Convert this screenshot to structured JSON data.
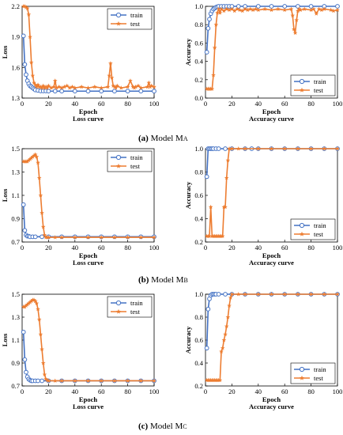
{
  "colors": {
    "train": "#4472c4",
    "test": "#ed7d31"
  },
  "captions": [
    {
      "label": "(a)",
      "text": "Model M",
      "sub": "A"
    },
    {
      "label": "(b)",
      "text": "Model M",
      "sub": "B"
    },
    {
      "label": "(c)",
      "text": "Model M",
      "sub": "C"
    }
  ],
  "chart_data": [
    {
      "id": "a-loss",
      "type": "line",
      "xlabel": "Epoch",
      "ylabel": "Loss",
      "title": "Loss curve",
      "xlim": [
        0,
        100
      ],
      "ylim": [
        1.3,
        2.2
      ],
      "xticks": [
        "0",
        "20",
        "40",
        "60",
        "80",
        "100"
      ],
      "yticks": [
        "1.3",
        "1.6",
        "1.9",
        "2.2"
      ],
      "ytickvals": [
        1.3,
        1.6,
        1.9,
        2.2
      ],
      "legend": "top-right",
      "series": [
        {
          "name": "train",
          "marker": "circle",
          "x": [
            1,
            2,
            3,
            4,
            5,
            6,
            7,
            8,
            9,
            10,
            12,
            14,
            16,
            18,
            20,
            25,
            30,
            40,
            50,
            60,
            70,
            80,
            90,
            100
          ],
          "y": [
            1.91,
            1.63,
            1.53,
            1.47,
            1.44,
            1.42,
            1.41,
            1.4,
            1.39,
            1.38,
            1.375,
            1.37,
            1.37,
            1.37,
            1.368,
            1.368,
            1.368,
            1.368,
            1.368,
            1.368,
            1.368,
            1.368,
            1.368,
            1.368
          ]
        },
        {
          "name": "test",
          "marker": "star",
          "x": [
            1,
            2,
            3,
            4,
            5,
            6,
            7,
            8,
            9,
            10,
            11,
            12,
            13,
            14,
            15,
            16,
            17,
            18,
            19,
            20,
            22,
            24,
            25,
            26,
            28,
            30,
            32,
            34,
            36,
            38,
            40,
            45,
            50,
            55,
            60,
            65,
            66,
            67,
            68,
            69,
            70,
            71,
            72,
            75,
            80,
            82,
            84,
            85,
            86,
            88,
            90,
            95,
            96,
            97,
            98,
            100
          ],
          "y": [
            2.2,
            2.2,
            2.19,
            2.18,
            2.12,
            1.9,
            1.65,
            1.52,
            1.45,
            1.43,
            1.41,
            1.43,
            1.41,
            1.41,
            1.4,
            1.42,
            1.4,
            1.41,
            1.4,
            1.42,
            1.4,
            1.41,
            1.47,
            1.4,
            1.41,
            1.4,
            1.41,
            1.42,
            1.4,
            1.41,
            1.4,
            1.41,
            1.4,
            1.41,
            1.4,
            1.41,
            1.52,
            1.64,
            1.5,
            1.42,
            1.41,
            1.4,
            1.42,
            1.4,
            1.41,
            1.47,
            1.41,
            1.4,
            1.41,
            1.42,
            1.4,
            1.41,
            1.45,
            1.41,
            1.42,
            1.41
          ]
        }
      ]
    },
    {
      "id": "a-acc",
      "type": "line",
      "xlabel": "Epoch",
      "ylabel": "Accuracy",
      "title": "Accuracy curve",
      "xlim": [
        0,
        100
      ],
      "ylim": [
        0,
        1
      ],
      "xticks": [
        "0",
        "20",
        "40",
        "60",
        "80",
        "100"
      ],
      "yticks": [
        "0.0",
        "0.2",
        "0.4",
        "0.6",
        "0.8",
        "1.0"
      ],
      "ytickvals": [
        0,
        0.2,
        0.4,
        0.6,
        0.8,
        1.0
      ],
      "legend": "bottom-right",
      "series": [
        {
          "name": "train",
          "marker": "circle",
          "x": [
            1,
            2,
            3,
            4,
            5,
            6,
            7,
            8,
            9,
            10,
            12,
            14,
            16,
            18,
            20,
            25,
            30,
            40,
            50,
            60,
            70,
            80,
            90,
            100
          ],
          "y": [
            0.5,
            0.76,
            0.86,
            0.92,
            0.95,
            0.97,
            0.98,
            0.99,
            0.995,
            1.0,
            1.0,
            1.0,
            1.0,
            1.0,
            1.0,
            1.0,
            1.0,
            1.0,
            1.0,
            1.0,
            1.0,
            1.0,
            1.0,
            1.0
          ]
        },
        {
          "name": "test",
          "marker": "star",
          "x": [
            1,
            2,
            3,
            4,
            5,
            6,
            7,
            8,
            9,
            10,
            11,
            12,
            14,
            16,
            18,
            20,
            22,
            24,
            26,
            28,
            30,
            32,
            34,
            36,
            38,
            40,
            45,
            50,
            55,
            60,
            65,
            66,
            67,
            68,
            69,
            70,
            71,
            72,
            75,
            80,
            82,
            84,
            86,
            88,
            90,
            95,
            97,
            100
          ],
          "y": [
            0.1,
            0.1,
            0.1,
            0.1,
            0.1,
            0.25,
            0.55,
            0.8,
            0.93,
            0.97,
            0.93,
            0.97,
            0.95,
            0.97,
            0.96,
            0.97,
            0.95,
            0.97,
            0.96,
            0.95,
            0.97,
            0.96,
            0.97,
            0.96,
            0.97,
            0.96,
            0.97,
            0.96,
            0.97,
            0.96,
            0.97,
            0.9,
            0.75,
            0.71,
            0.85,
            0.95,
            0.97,
            0.96,
            0.97,
            0.96,
            0.97,
            0.92,
            0.97,
            0.96,
            0.97,
            0.96,
            0.95,
            0.96
          ]
        }
      ]
    },
    {
      "id": "b-loss",
      "type": "line",
      "xlabel": "Epoch",
      "ylabel": "Loss",
      "title": "Loss curve",
      "xlim": [
        0,
        100
      ],
      "ylim": [
        0.7,
        1.5
      ],
      "xticks": [
        "0",
        "20",
        "40",
        "60",
        "80",
        "100"
      ],
      "yticks": [
        "0.7",
        "0.9",
        "1.1",
        "1.3",
        "1.5"
      ],
      "ytickvals": [
        0.7,
        0.9,
        1.1,
        1.3,
        1.5
      ],
      "legend": "top-right",
      "series": [
        {
          "name": "train",
          "marker": "circle",
          "x": [
            1,
            2,
            3,
            4,
            5,
            6,
            8,
            10,
            15,
            20,
            30,
            40,
            50,
            60,
            70,
            80,
            90,
            100
          ],
          "y": [
            1.02,
            0.8,
            0.76,
            0.75,
            0.75,
            0.745,
            0.745,
            0.745,
            0.745,
            0.745,
            0.745,
            0.745,
            0.745,
            0.745,
            0.745,
            0.745,
            0.745,
            0.745
          ]
        },
        {
          "name": "test",
          "marker": "star",
          "x": [
            1,
            2,
            3,
            4,
            5,
            6,
            7,
            8,
            9,
            10,
            11,
            12,
            13,
            14,
            15,
            16,
            17,
            18,
            19,
            20,
            25,
            30,
            40,
            50,
            60,
            70,
            80,
            90,
            100
          ],
          "y": [
            1.39,
            1.39,
            1.39,
            1.39,
            1.4,
            1.41,
            1.42,
            1.43,
            1.44,
            1.45,
            1.43,
            1.38,
            1.25,
            1.1,
            0.95,
            0.83,
            0.76,
            0.74,
            0.74,
            0.74,
            0.74,
            0.74,
            0.74,
            0.74,
            0.74,
            0.74,
            0.74,
            0.74,
            0.74
          ]
        }
      ]
    },
    {
      "id": "b-acc",
      "type": "line",
      "xlabel": "Epoch",
      "ylabel": "Accuracy",
      "title": "Accuracy curve",
      "xlim": [
        0,
        100
      ],
      "ylim": [
        0.2,
        1.0
      ],
      "xticks": [
        "0",
        "20",
        "40",
        "60",
        "80",
        "100"
      ],
      "yticks": [
        "0.2",
        "0.4",
        "0.6",
        "0.8",
        "1.0"
      ],
      "ytickvals": [
        0.2,
        0.4,
        0.6,
        0.8,
        1.0
      ],
      "legend": "bottom-right",
      "series": [
        {
          "name": "train",
          "marker": "circle",
          "x": [
            1,
            2,
            3,
            4,
            5,
            6,
            8,
            10,
            15,
            20,
            30,
            35,
            40,
            50,
            60,
            70,
            80,
            90,
            100
          ],
          "y": [
            0.76,
            1.0,
            1.0,
            1.0,
            1.0,
            1.0,
            1.0,
            1.0,
            1.0,
            1.0,
            1.0,
            1.0,
            1.0,
            1.0,
            1.0,
            1.0,
            1.0,
            1.0,
            1.0
          ]
        },
        {
          "name": "test",
          "marker": "star",
          "x": [
            1,
            2,
            3,
            4,
            5,
            6,
            7,
            8,
            9,
            10,
            11,
            12,
            13,
            14,
            15,
            16,
            17,
            18,
            20,
            25,
            30,
            40,
            50,
            60,
            70,
            80,
            90,
            100
          ],
          "y": [
            0.25,
            0.25,
            0.25,
            0.5,
            0.25,
            0.25,
            0.25,
            0.25,
            0.25,
            0.25,
            0.25,
            0.25,
            0.25,
            0.5,
            0.5,
            0.75,
            0.9,
            1.0,
            1.0,
            1.0,
            1.0,
            1.0,
            1.0,
            1.0,
            1.0,
            1.0,
            1.0,
            1.0
          ]
        }
      ]
    },
    {
      "id": "c-loss",
      "type": "line",
      "xlabel": "Epoch",
      "ylabel": "Loss",
      "title": "Loss curve",
      "xlim": [
        0,
        100
      ],
      "ylim": [
        0.7,
        1.5
      ],
      "xticks": [
        "0",
        "20",
        "40",
        "60",
        "80",
        "100"
      ],
      "yticks": [
        "0.7",
        "0.9",
        "1.1",
        "1.3",
        "1.5"
      ],
      "ytickvals": [
        0.7,
        0.9,
        1.1,
        1.3,
        1.5
      ],
      "legend": "top-right",
      "series": [
        {
          "name": "train",
          "marker": "circle",
          "x": [
            1,
            2,
            3,
            4,
            5,
            6,
            7,
            8,
            10,
            12,
            15,
            20,
            30,
            40,
            50,
            60,
            70,
            80,
            90,
            100
          ],
          "y": [
            1.17,
            0.93,
            0.82,
            0.78,
            0.76,
            0.75,
            0.745,
            0.745,
            0.745,
            0.745,
            0.745,
            0.745,
            0.745,
            0.745,
            0.745,
            0.745,
            0.745,
            0.745,
            0.745,
            0.745
          ]
        },
        {
          "name": "test",
          "marker": "star",
          "x": [
            1,
            2,
            3,
            4,
            5,
            6,
            7,
            8,
            9,
            10,
            11,
            12,
            13,
            14,
            15,
            16,
            17,
            18,
            19,
            20,
            25,
            30,
            40,
            50,
            60,
            70,
            80,
            90,
            100
          ],
          "y": [
            1.39,
            1.39,
            1.4,
            1.41,
            1.42,
            1.43,
            1.44,
            1.45,
            1.45,
            1.44,
            1.42,
            1.37,
            1.28,
            1.15,
            1.02,
            0.9,
            0.8,
            0.76,
            0.75,
            0.745,
            0.745,
            0.745,
            0.745,
            0.745,
            0.745,
            0.745,
            0.745,
            0.745,
            0.745
          ]
        }
      ]
    },
    {
      "id": "c-acc",
      "type": "line",
      "xlabel": "Epoch",
      "ylabel": "Accuracy",
      "title": "Accuracy curve",
      "xlim": [
        0,
        100
      ],
      "ylim": [
        0.2,
        1.0
      ],
      "xticks": [
        "0",
        "20",
        "40",
        "60",
        "80",
        "100"
      ],
      "yticks": [
        "0.2",
        "0.4",
        "0.6",
        "0.8",
        "1.0"
      ],
      "ytickvals": [
        0.2,
        0.4,
        0.6,
        0.8,
        1.0
      ],
      "legend": "bottom-right",
      "series": [
        {
          "name": "train",
          "marker": "circle",
          "x": [
            1,
            2,
            3,
            4,
            5,
            6,
            7,
            8,
            10,
            15,
            20,
            30,
            40,
            50,
            60,
            70,
            80,
            90,
            100
          ],
          "y": [
            0.53,
            0.87,
            0.96,
            0.99,
            1.0,
            1.0,
            1.0,
            1.0,
            1.0,
            1.0,
            1.0,
            1.0,
            1.0,
            1.0,
            1.0,
            1.0,
            1.0,
            1.0,
            1.0
          ]
        },
        {
          "name": "test",
          "marker": "star",
          "x": [
            1,
            2,
            3,
            4,
            5,
            6,
            7,
            8,
            9,
            10,
            11,
            12,
            13,
            14,
            15,
            16,
            17,
            18,
            19,
            20,
            25,
            30,
            40,
            50,
            60,
            70,
            80,
            90,
            100
          ],
          "y": [
            0.25,
            0.25,
            0.25,
            0.25,
            0.25,
            0.25,
            0.25,
            0.25,
            0.25,
            0.25,
            0.25,
            0.5,
            0.53,
            0.6,
            0.65,
            0.72,
            0.8,
            0.9,
            0.97,
            1.0,
            1.0,
            1.0,
            1.0,
            1.0,
            1.0,
            1.0,
            1.0,
            1.0,
            1.0
          ]
        }
      ]
    }
  ]
}
